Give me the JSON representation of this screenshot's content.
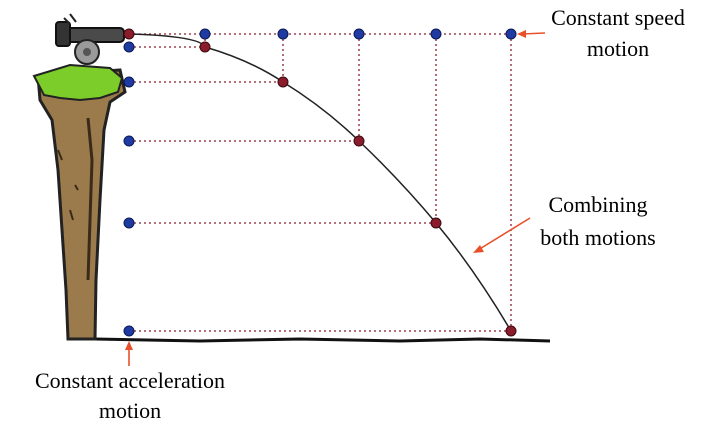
{
  "labels": {
    "horizontal": [
      "Constant speed",
      "motion"
    ],
    "combined": [
      "Combining",
      "both motions"
    ],
    "vertical": [
      "Constant acceleration",
      "motion"
    ]
  },
  "colors": {
    "horizontal_dot": "#1f3aa0",
    "projectile_dot": "#8b1c2c",
    "guide_line": "#8b1c2c",
    "trajectory": "#222222",
    "arrow": "#e8502a",
    "grass": "#7ccd2a",
    "cliff": "#9b7a4c",
    "cannon": "#4a4a4a"
  },
  "icons": [
    "cannon-icon",
    "cliff-icon"
  ]
}
